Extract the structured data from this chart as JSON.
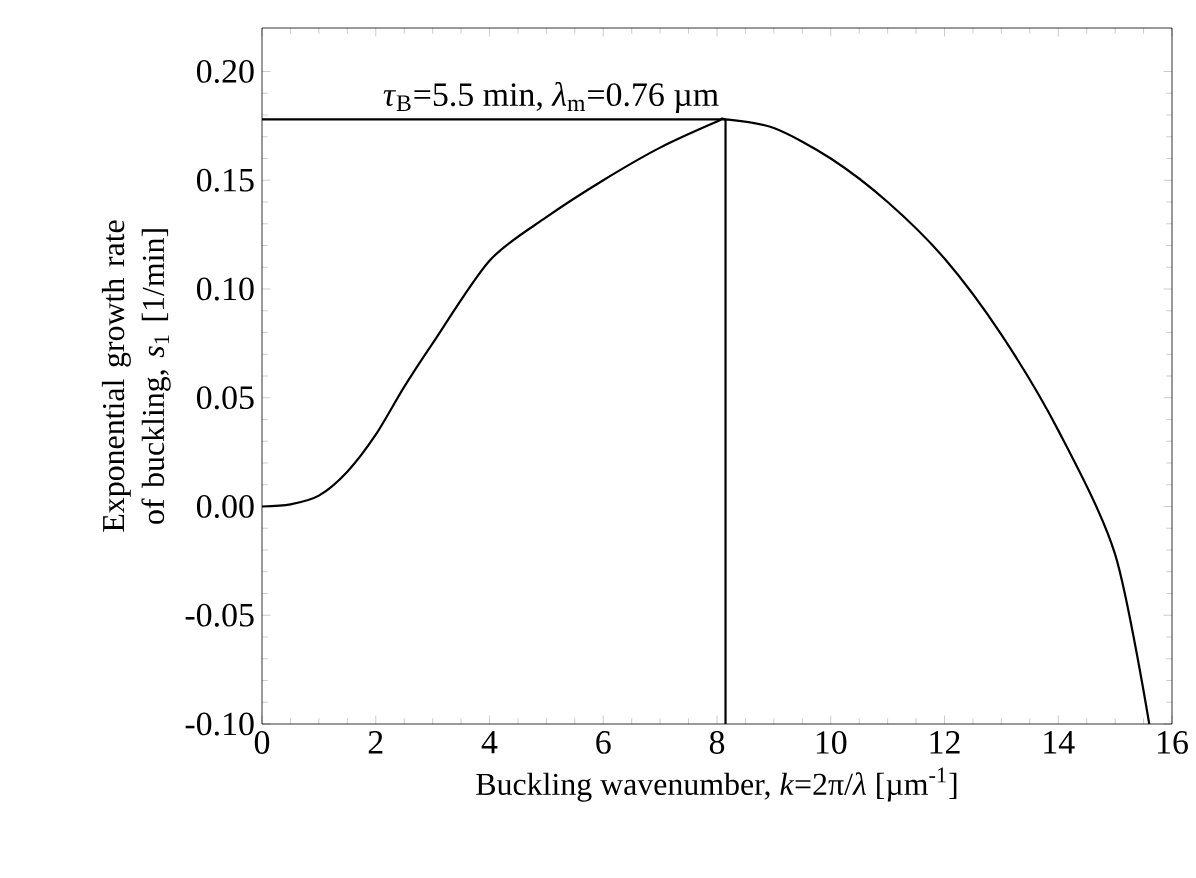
{
  "chart_data": {
    "type": "line",
    "xlabel": "Buckling wavenumber, *k*=2π/*λ* [µm$^{-1}$]",
    "ylabel": "Exponential growth rate of buckling, *s*$_{1}$ [1/min]",
    "xlim": [
      0,
      16
    ],
    "xticks": [
      0,
      2,
      4,
      6,
      8,
      10,
      12,
      14,
      16
    ],
    "ylim": [
      -0.1,
      0.22
    ],
    "yticks": [
      {
        "value": -0.1,
        "label": "-0.10"
      },
      {
        "value": -0.05,
        "label": "-0.05"
      },
      {
        "value": 0,
        "label": "0.00"
      },
      {
        "value": 0.05,
        "label": "0.05"
      },
      {
        "value": 0.1,
        "label": "0.10"
      },
      {
        "value": 0.15,
        "label": "0.15"
      },
      {
        "value": 0.2,
        "label": "0.20"
      }
    ],
    "annotations": [
      {
        "text": "*τ*$_{B}$=5.5 min, *λ*$_{m}$=0.76 µm",
        "x": 8.15,
        "y": 0.178
      }
    ],
    "grid": false,
    "series": [
      {
        "color": "#000000",
        "x": [
          0,
          0.5,
          1,
          1.5,
          2,
          2.5,
          3,
          4,
          5,
          6,
          7,
          8,
          8.15,
          9,
          10,
          11,
          12,
          13,
          14,
          15,
          15.6
        ],
        "values": [
          0,
          0.001,
          0.005,
          0.016,
          0.033,
          0.055,
          0.075,
          0.113,
          0.133,
          0.15,
          0.165,
          0.177,
          0.178,
          0.174,
          0.16,
          0.14,
          0.114,
          0.079,
          0.035,
          -0.022,
          -0.1
        ]
      },
      {
        "color": "#000000",
        "x": [
          0,
          8.15,
          8.15
        ],
        "values": [
          0.178,
          0.178,
          -0.1
        ]
      }
    ]
  }
}
